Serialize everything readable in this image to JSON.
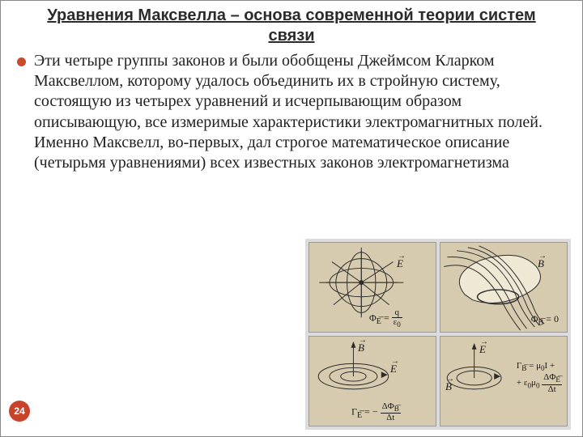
{
  "slide": {
    "title": "Уравнения Максвелла – основа современной теории систем связи",
    "bullet_color": "#cc4a29",
    "body": " Эти четыре группы законов и были обобщены Джеймсом Кларком Максвеллом, которому удалось объединить их в стройную систему,  состоящую из четырех уравнений и исчерпывающим образом описывающую, все измеримые характеристики электромагнитных полей. Именно Максвелл, во-первых, дал строгое математическое описание (четырьмя уравнениями) всех известных законов электромагнетизма",
    "page_number": "24",
    "badge_color": "#c9432b"
  },
  "panels": {
    "background": "#d7cbaf",
    "grid_bg": "#dcdcdc",
    "stroke": "#2b2b2b",
    "p1": {
      "vec": "E",
      "formula_html": "Φ<sub>E͞</sub> = <span class='frac'><span class='num'>q</span><span class='den'>ε<sub>0</sub></span></span>"
    },
    "p2": {
      "vec": "B",
      "formula_html": "Φ<sub>B͞</sub> = 0"
    },
    "p3": {
      "vecE": "E",
      "vecB": "B",
      "formula_html": "Γ<sub>E͞</sub> = − <span class='frac'><span class='num'>ΔΦ<sub>B͞</sub></span><span class='den'>Δt</span></span>"
    },
    "p4": {
      "vecE": "E",
      "vecB": "B",
      "formula_html": "Γ<sub>B͞</sub> = μ<sub>0</sub>I +<br>+ ε<sub>0</sub>μ<sub>0</sub> <span class='frac'><span class='num'>ΔΦ<sub>E͞</sub></span><span class='den'>Δt</span></span>"
    }
  }
}
